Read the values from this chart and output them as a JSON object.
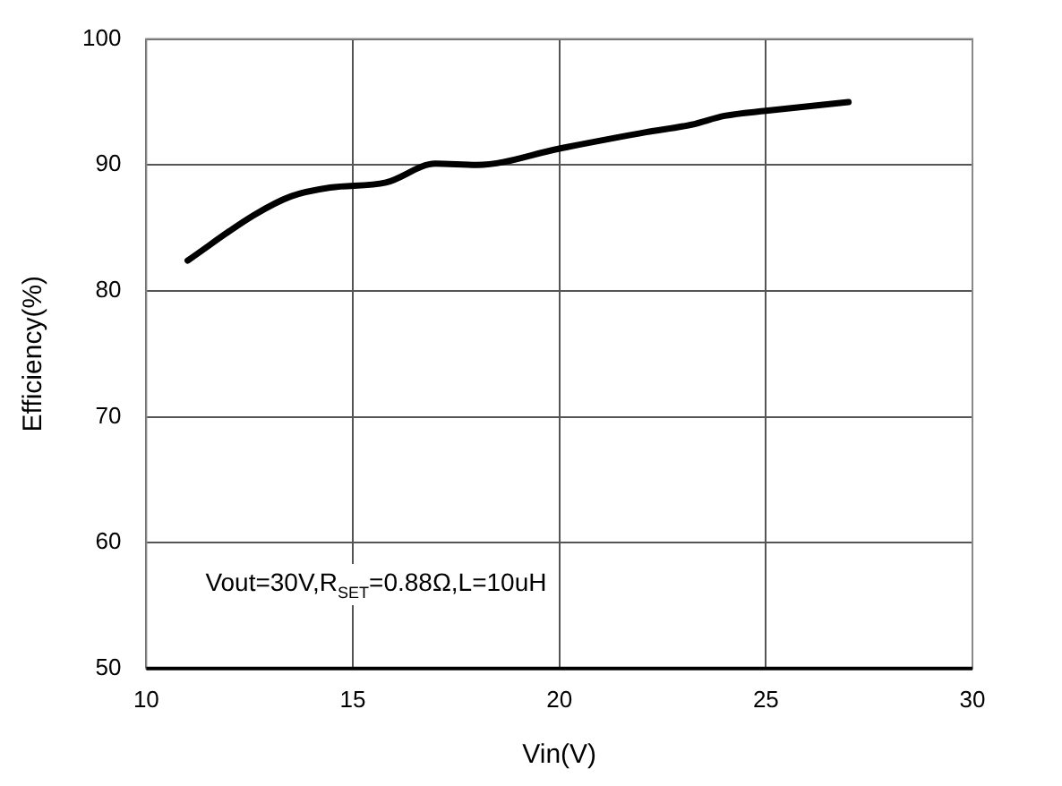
{
  "chart_data": {
    "type": "line",
    "xlabel": "Vin(V)",
    "ylabel": "Efficiency(%)",
    "annotations": [
      "Vout=30V,R$_{SET}$=0.88Ω,L=10uH"
    ],
    "series": [
      {
        "color": "#000000",
        "x": [
          11.0,
          12.6,
          13.5,
          14.45,
          15.8,
          17.0,
          18.0,
          20.0,
          22.1,
          23.2,
          24.0,
          25.0,
          27.0
        ],
        "values": [
          82.4,
          86.0,
          87.5,
          88.2,
          88.6,
          90.1,
          90.0,
          91.3,
          92.6,
          93.2,
          93.9,
          94.3,
          95.0
        ]
      }
    ],
    "xlim": [
      10,
      30
    ],
    "xticks": [
      10,
      15,
      20,
      25,
      30
    ],
    "ylim": [
      50,
      100
    ],
    "yticks": [
      50,
      60,
      70,
      80,
      90,
      100
    ],
    "grid": true,
    "legend": false,
    "marker": "none",
    "line_style": "solid"
  }
}
